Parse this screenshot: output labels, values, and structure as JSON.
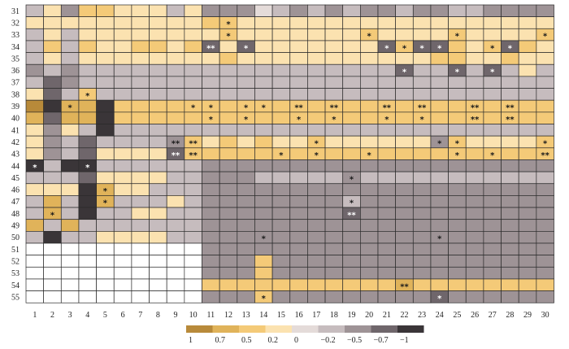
{
  "chart_data": {
    "type": "heatmap",
    "title": "",
    "xlabel": "",
    "ylabel": "",
    "x_labels": [
      "1",
      "2",
      "3",
      "4",
      "5",
      "6",
      "7",
      "8",
      "9",
      "10",
      "11",
      "12",
      "13",
      "14",
      "15",
      "16",
      "17",
      "18",
      "19",
      "20",
      "21",
      "22",
      "23",
      "24",
      "25",
      "26",
      "27",
      "28",
      "29",
      "30"
    ],
    "y_labels": [
      "31",
      "32",
      "33",
      "34",
      "35",
      "36",
      "37",
      "38",
      "39",
      "40",
      "41",
      "42",
      "43",
      "44",
      "45",
      "46",
      "47",
      "48",
      "49",
      "50",
      "51",
      "52",
      "53",
      "54",
      "55"
    ],
    "grid": true,
    "missing_value": "empty (white) cells",
    "colors": {
      "1": "#b88a3a",
      "0.7": "#e0b35a",
      "0.5": "#f4ca78",
      "0.2": "#fbe2b0",
      "0": "#e4dbd9",
      "-0.2": "#c6bcbe",
      "-0.5": "#9e9396",
      "-0.7": "#6f666b",
      "-1": "#3a3538"
    },
    "legend": {
      "position": "bottom",
      "ticks": [
        "1",
        "0.7",
        "0.5",
        "0.2",
        "0",
        "−0.2",
        "−0.5",
        "−0.7",
        "−1"
      ]
    },
    "values": [
      [
        -0.2,
        0.2,
        -0.5,
        0.5,
        0.5,
        0.2,
        0.2,
        0.2,
        -0.2,
        0.2,
        -0.5,
        -0.5,
        -0.5,
        0,
        -0.2,
        -0.5,
        -0.2,
        -0.5,
        -0.2,
        -0.5,
        -0.5,
        -0.2,
        -0.5,
        -0.5,
        -0.2,
        -0.2,
        -0.5,
        -0.5,
        -0.5,
        -0.5
      ],
      [
        0.2,
        0.2,
        0.2,
        0.2,
        0.2,
        0.2,
        0.2,
        0.2,
        0.2,
        0.2,
        0.5,
        0.5,
        0.2,
        0.2,
        0.2,
        0.2,
        0.2,
        0.2,
        0.2,
        0.2,
        0.2,
        0.2,
        0.2,
        0.2,
        0.2,
        0.2,
        0.2,
        0.2,
        0.2,
        0.2
      ],
      [
        -0.2,
        0.2,
        -0.2,
        0.2,
        0.2,
        0.2,
        0.2,
        0.2,
        0.2,
        0.2,
        0.2,
        0.5,
        0.2,
        0.2,
        0.2,
        0.2,
        0.2,
        0.2,
        0.2,
        0.5,
        0.2,
        0.2,
        0.2,
        0.2,
        0.5,
        0.2,
        0.2,
        0.2,
        0.2,
        0.5
      ],
      [
        -0.2,
        0.5,
        -0.2,
        0.5,
        0.2,
        0.2,
        0.5,
        0.5,
        0.2,
        0.5,
        -0.7,
        0.2,
        -0.7,
        0.2,
        0.2,
        0.2,
        0.2,
        0.2,
        0.2,
        0.2,
        -0.7,
        0.5,
        -0.7,
        -0.7,
        0.5,
        0.2,
        0.5,
        -0.7,
        0.5,
        0.2
      ],
      [
        -0.2,
        0.2,
        -0.2,
        0.2,
        0.2,
        0.2,
        0.2,
        0.2,
        0.2,
        0.2,
        0.2,
        0.5,
        0.2,
        0.2,
        0.2,
        0.2,
        0.2,
        0.2,
        0.2,
        0.2,
        0.2,
        0.2,
        0.2,
        0.5,
        0.5,
        0.2,
        0.2,
        0.5,
        0.2,
        0.2
      ],
      [
        -0.5,
        -0.2,
        -0.5,
        -0.2,
        -0.2,
        -0.2,
        -0.2,
        -0.2,
        -0.2,
        -0.2,
        -0.2,
        -0.2,
        -0.2,
        -0.2,
        -0.2,
        -0.2,
        -0.2,
        -0.2,
        -0.2,
        -0.2,
        -0.2,
        -0.7,
        -0.2,
        -0.2,
        -0.7,
        -0.2,
        -0.7,
        -0.2,
        0.2,
        -0.2
      ],
      [
        -0.2,
        -0.7,
        -0.5,
        -0.2,
        -0.2,
        -0.2,
        -0.2,
        -0.2,
        -0.2,
        -0.2,
        -0.2,
        -0.2,
        -0.2,
        -0.2,
        -0.2,
        -0.2,
        -0.2,
        -0.2,
        -0.2,
        -0.2,
        -0.2,
        -0.2,
        -0.2,
        -0.2,
        -0.2,
        -0.2,
        -0.2,
        -0.2,
        -0.2,
        -0.2
      ],
      [
        0.2,
        -0.7,
        -0.2,
        0.5,
        -0.2,
        -0.2,
        -0.2,
        -0.2,
        -0.2,
        -0.2,
        -0.2,
        -0.2,
        -0.2,
        -0.2,
        -0.2,
        -0.2,
        -0.2,
        -0.2,
        -0.2,
        -0.2,
        -0.2,
        -0.2,
        -0.2,
        -0.2,
        -0.2,
        -0.2,
        -0.2,
        -0.2,
        -0.2,
        -0.2
      ],
      [
        1,
        -1,
        0.7,
        0.7,
        -1,
        0.5,
        0.5,
        0.5,
        0.5,
        0.5,
        0.5,
        0.5,
        0.5,
        0.5,
        0.5,
        0.5,
        0.5,
        0.5,
        0.5,
        0.5,
        0.5,
        0.5,
        0.5,
        0.5,
        0.5,
        0.5,
        0.5,
        0.5,
        0.5,
        0.5
      ],
      [
        0.7,
        -0.7,
        0.7,
        0.7,
        -1,
        0.5,
        0.5,
        0.5,
        0.5,
        0.5,
        0.5,
        0.5,
        0.5,
        0.5,
        0.5,
        0.5,
        0.5,
        0.5,
        0.5,
        0.5,
        0.5,
        0.5,
        0.5,
        0.5,
        0.5,
        0.5,
        0.5,
        0.5,
        0.5,
        0.5
      ],
      [
        0.2,
        -0.5,
        0.2,
        -0.2,
        -1,
        -0.2,
        -0.2,
        -0.2,
        -0.2,
        -0.2,
        -0.2,
        -0.2,
        -0.2,
        -0.2,
        -0.2,
        -0.2,
        -0.2,
        -0.2,
        -0.2,
        -0.2,
        -0.2,
        -0.2,
        -0.2,
        -0.2,
        -0.2,
        -0.2,
        -0.2,
        -0.2,
        -0.2,
        -0.2
      ],
      [
        0.2,
        -0.5,
        -0.2,
        -0.7,
        -0.2,
        -0.2,
        -0.2,
        -0.2,
        -0.5,
        0.5,
        0.2,
        0.5,
        0.2,
        0.5,
        0.2,
        0.2,
        0.5,
        0.2,
        0.2,
        0.2,
        0.2,
        0.2,
        0.2,
        -0.5,
        0.5,
        0.2,
        0.2,
        0.2,
        0.2,
        0.5
      ],
      [
        0.2,
        -0.5,
        -0.2,
        -0.7,
        0.2,
        0.2,
        0.2,
        0.2,
        -0.7,
        0.5,
        0.5,
        0.5,
        0.5,
        0.5,
        0.5,
        0.5,
        0.5,
        0.5,
        0.5,
        0.5,
        0.5,
        0.5,
        0.5,
        0.5,
        0.5,
        0.5,
        0.5,
        0.5,
        0.5,
        0.5
      ],
      [
        -1,
        -0.2,
        -1,
        -1,
        -0.2,
        -0.2,
        -0.2,
        -0.2,
        -0.2,
        -0.2,
        -0.5,
        -0.5,
        -0.5,
        -0.5,
        -0.5,
        -0.5,
        -0.5,
        -0.5,
        -0.5,
        -0.5,
        -0.5,
        -0.5,
        -0.5,
        -0.5,
        -0.5,
        -0.5,
        -0.5,
        -0.5,
        -0.5,
        -0.5
      ],
      [
        -0.2,
        -0.2,
        -0.2,
        -0.7,
        0.2,
        0.2,
        0.2,
        0.2,
        -0.2,
        -0.2,
        -0.5,
        -0.5,
        -0.5,
        -0.2,
        -0.2,
        -0.2,
        -0.2,
        -0.2,
        -0.5,
        -0.2,
        -0.2,
        -0.2,
        -0.2,
        -0.2,
        -0.2,
        -0.2,
        -0.2,
        -0.2,
        -0.2,
        -0.2
      ],
      [
        0.2,
        0.2,
        0.2,
        -1,
        0.7,
        0.2,
        0.2,
        -0.2,
        -0.2,
        -0.2,
        -0.5,
        -0.5,
        -0.5,
        -0.5,
        -0.5,
        -0.5,
        -0.5,
        -0.5,
        -0.5,
        -0.5,
        -0.5,
        -0.5,
        -0.5,
        -0.5,
        -0.5,
        -0.5,
        -0.5,
        -0.5,
        -0.5,
        -0.5
      ],
      [
        -0.2,
        0.7,
        -0.2,
        -1,
        0.7,
        -0.2,
        -0.2,
        -0.2,
        0.2,
        -0.2,
        -0.5,
        -0.5,
        -0.5,
        -0.5,
        -0.5,
        -0.5,
        -0.5,
        -0.5,
        -0.2,
        -0.5,
        -0.5,
        -0.5,
        -0.5,
        -0.5,
        -0.5,
        -0.5,
        -0.5,
        -0.5,
        -0.5,
        -0.5
      ],
      [
        -0.2,
        0.7,
        -0.2,
        -1,
        -0.2,
        -0.2,
        0.2,
        0.2,
        -0.2,
        -0.2,
        -0.5,
        -0.5,
        -0.5,
        -0.5,
        -0.5,
        -0.5,
        -0.5,
        -0.5,
        -0.7,
        -0.5,
        -0.5,
        -0.5,
        -0.5,
        -0.5,
        -0.5,
        -0.5,
        -0.5,
        -0.5,
        -0.5,
        -0.5
      ],
      [
        0.7,
        -0.2,
        0.7,
        -0.2,
        -0.2,
        -0.2,
        -0.2,
        -0.2,
        -0.2,
        -0.2,
        -0.5,
        -0.5,
        -0.5,
        -0.5,
        -0.5,
        -0.5,
        -0.5,
        -0.5,
        -0.5,
        -0.5,
        -0.5,
        -0.5,
        -0.5,
        -0.5,
        -0.5,
        -0.5,
        -0.5,
        -0.5,
        -0.5,
        -0.5
      ],
      [
        -0.2,
        -1,
        -0.2,
        -0.2,
        0.2,
        0.2,
        0.2,
        0.2,
        -0.2,
        -0.2,
        -0.5,
        -0.5,
        -0.5,
        -0.5,
        -0.5,
        -0.5,
        -0.5,
        -0.5,
        -0.5,
        -0.5,
        -0.5,
        -0.5,
        -0.5,
        -0.5,
        -0.5,
        -0.5,
        -0.5,
        -0.5,
        -0.5,
        -0.5
      ],
      [
        null,
        null,
        null,
        null,
        null,
        null,
        null,
        null,
        null,
        null,
        -0.5,
        -0.5,
        -0.5,
        -0.5,
        -0.5,
        -0.5,
        -0.5,
        -0.5,
        -0.5,
        -0.5,
        -0.5,
        -0.5,
        -0.5,
        -0.5,
        -0.5,
        -0.5,
        -0.5,
        -0.5,
        -0.5,
        -0.5
      ],
      [
        null,
        null,
        null,
        null,
        null,
        null,
        null,
        null,
        null,
        null,
        -0.5,
        -0.5,
        -0.5,
        0.5,
        -0.5,
        -0.5,
        -0.5,
        -0.5,
        -0.5,
        -0.5,
        -0.5,
        -0.5,
        -0.5,
        -0.5,
        -0.5,
        -0.5,
        -0.5,
        -0.5,
        -0.5,
        -0.5
      ],
      [
        null,
        null,
        null,
        null,
        null,
        null,
        null,
        null,
        null,
        null,
        -0.5,
        -0.5,
        -0.5,
        0.5,
        -0.5,
        -0.5,
        -0.5,
        -0.5,
        -0.5,
        -0.5,
        -0.5,
        -0.5,
        -0.5,
        -0.5,
        -0.5,
        -0.5,
        -0.5,
        -0.5,
        -0.5,
        -0.5
      ],
      [
        null,
        null,
        null,
        null,
        null,
        null,
        null,
        null,
        null,
        null,
        0.5,
        0.5,
        0.5,
        0.5,
        0.5,
        0.5,
        0.5,
        0.5,
        0.5,
        0.5,
        0.5,
        0.7,
        0.5,
        0.5,
        0.5,
        0.5,
        0.5,
        0.5,
        0.5,
        0.5
      ],
      [
        null,
        null,
        null,
        null,
        null,
        null,
        null,
        null,
        null,
        null,
        -0.5,
        -0.5,
        -0.5,
        0.5,
        -0.5,
        -0.5,
        -0.5,
        -0.5,
        -0.5,
        -0.5,
        -0.5,
        -0.5,
        -0.5,
        -0.7,
        -0.5,
        -0.5,
        -0.5,
        -0.5,
        -0.5,
        -0.5
      ]
    ],
    "annotations": [
      {
        "row": "32",
        "col": "12",
        "text": "*"
      },
      {
        "row": "33",
        "col": "12",
        "text": "*"
      },
      {
        "row": "33",
        "col": "20",
        "text": "*"
      },
      {
        "row": "33",
        "col": "25",
        "text": "*"
      },
      {
        "row": "33",
        "col": "30",
        "text": "*"
      },
      {
        "row": "34",
        "col": "11",
        "text": "**"
      },
      {
        "row": "34",
        "col": "13",
        "text": "*"
      },
      {
        "row": "34",
        "col": "21",
        "text": "*"
      },
      {
        "row": "34",
        "col": "22",
        "text": "*"
      },
      {
        "row": "34",
        "col": "23",
        "text": "*"
      },
      {
        "row": "34",
        "col": "24",
        "text": "*"
      },
      {
        "row": "34",
        "col": "27",
        "text": "*"
      },
      {
        "row": "34",
        "col": "28",
        "text": "*"
      },
      {
        "row": "36",
        "col": "22",
        "text": "*"
      },
      {
        "row": "36",
        "col": "25",
        "text": "*"
      },
      {
        "row": "36",
        "col": "27",
        "text": "*"
      },
      {
        "row": "38",
        "col": "4",
        "text": "*"
      },
      {
        "row": "39",
        "col": "3",
        "text": "*"
      },
      {
        "row": "39",
        "col": "10",
        "text": "*"
      },
      {
        "row": "39",
        "col": "11",
        "text": "*"
      },
      {
        "row": "39",
        "col": "13",
        "text": "*"
      },
      {
        "row": "39",
        "col": "14",
        "text": "*"
      },
      {
        "row": "39",
        "col": "16",
        "text": "**"
      },
      {
        "row": "39",
        "col": "18",
        "text": "**"
      },
      {
        "row": "39",
        "col": "21",
        "text": "**"
      },
      {
        "row": "39",
        "col": "23",
        "text": "**"
      },
      {
        "row": "39",
        "col": "26",
        "text": "**"
      },
      {
        "row": "39",
        "col": "28",
        "text": "**"
      },
      {
        "row": "40",
        "col": "11",
        "text": "*"
      },
      {
        "row": "40",
        "col": "13",
        "text": "*"
      },
      {
        "row": "40",
        "col": "16",
        "text": "*"
      },
      {
        "row": "40",
        "col": "18",
        "text": "*"
      },
      {
        "row": "40",
        "col": "21",
        "text": "*"
      },
      {
        "row": "40",
        "col": "23",
        "text": "*"
      },
      {
        "row": "40",
        "col": "26",
        "text": "**"
      },
      {
        "row": "40",
        "col": "28",
        "text": "**"
      },
      {
        "row": "42",
        "col": "9",
        "text": "**"
      },
      {
        "row": "42",
        "col": "10",
        "text": "**"
      },
      {
        "row": "42",
        "col": "17",
        "text": "*"
      },
      {
        "row": "42",
        "col": "24",
        "text": "*"
      },
      {
        "row": "42",
        "col": "25",
        "text": "*"
      },
      {
        "row": "42",
        "col": "30",
        "text": "*"
      },
      {
        "row": "43",
        "col": "9",
        "text": "**"
      },
      {
        "row": "43",
        "col": "10",
        "text": "**"
      },
      {
        "row": "43",
        "col": "15",
        "text": "*"
      },
      {
        "row": "43",
        "col": "17",
        "text": "*"
      },
      {
        "row": "43",
        "col": "20",
        "text": "*"
      },
      {
        "row": "43",
        "col": "25",
        "text": "*"
      },
      {
        "row": "43",
        "col": "27",
        "text": "*"
      },
      {
        "row": "43",
        "col": "30",
        "text": "**"
      },
      {
        "row": "44",
        "col": "1",
        "text": "*"
      },
      {
        "row": "44",
        "col": "4",
        "text": "*"
      },
      {
        "row": "45",
        "col": "19",
        "text": "*"
      },
      {
        "row": "46",
        "col": "5",
        "text": "*"
      },
      {
        "row": "47",
        "col": "5",
        "text": "*"
      },
      {
        "row": "47",
        "col": "19",
        "text": "*"
      },
      {
        "row": "48",
        "col": "2",
        "text": "*"
      },
      {
        "row": "48",
        "col": "19",
        "text": "**"
      },
      {
        "row": "50",
        "col": "14",
        "text": "*"
      },
      {
        "row": "50",
        "col": "24",
        "text": "*"
      },
      {
        "row": "54",
        "col": "22",
        "text": "**"
      },
      {
        "row": "55",
        "col": "14",
        "text": "*"
      },
      {
        "row": "55",
        "col": "24",
        "text": "*"
      }
    ]
  }
}
